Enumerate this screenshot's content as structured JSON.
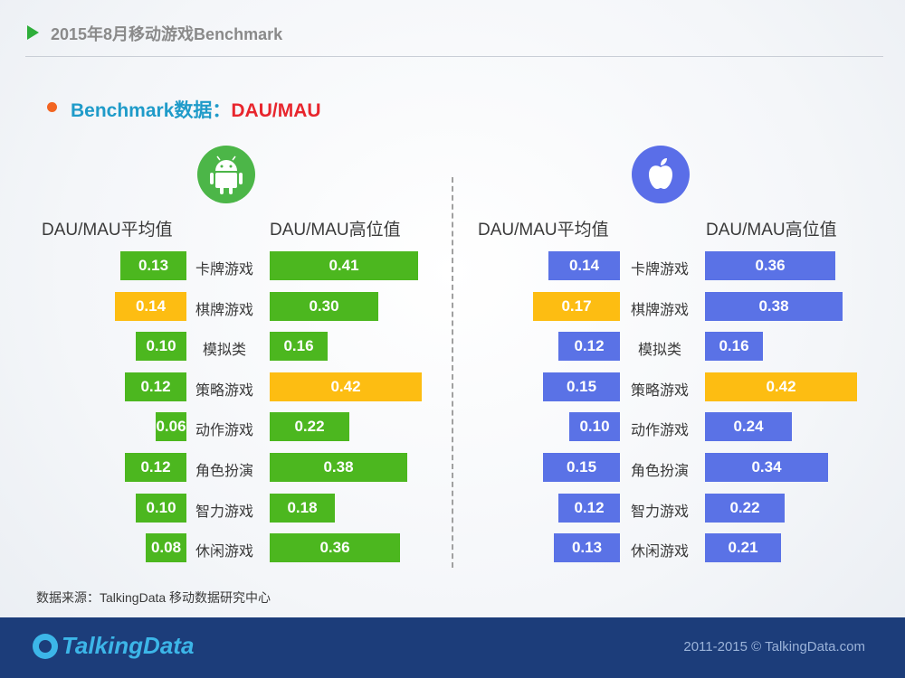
{
  "header": {
    "title": "2015年8月移动游戏Benchmark"
  },
  "section": {
    "title_prefix": "Benchmark数据：",
    "title_accent": "DAU/MAU"
  },
  "column_headers": {
    "android_avg": "DAU/MAU平均值",
    "android_high": "DAU/MAU高位值",
    "ios_avg": "DAU/MAU平均值",
    "ios_high": "DAU/MAU高位值"
  },
  "platforms": [
    "Android",
    "iOS"
  ],
  "colors": {
    "android": "#4cb71f",
    "ios": "#5a72e6",
    "highlight": "#fdbd12"
  },
  "chart_data": {
    "type": "bar",
    "categories": [
      "卡牌游戏",
      "棋牌游戏",
      "模拟类",
      "策略游戏",
      "动作游戏",
      "角色扮演",
      "智力游戏",
      "休闲游戏"
    ],
    "series": [
      {
        "name": "DAU/MAU平均值",
        "platform": "android",
        "values": [
          0.13,
          0.14,
          0.1,
          0.12,
          0.06,
          0.12,
          0.1,
          0.08
        ],
        "labels": [
          "0.13",
          "0.14",
          "0.10",
          "0.12",
          "0.06",
          "0.12",
          "0.10",
          "0.08"
        ],
        "highlight_index": 1
      },
      {
        "name": "DAU/MAU高位值",
        "platform": "android",
        "values": [
          0.41,
          0.3,
          0.16,
          0.42,
          0.22,
          0.38,
          0.18,
          0.36
        ],
        "labels": [
          "0.41",
          "0.30",
          "0.16",
          "0.42",
          "0.22",
          "0.38",
          "0.18",
          "0.36"
        ],
        "highlight_index": 3
      },
      {
        "name": "DAU/MAU平均值",
        "platform": "ios",
        "values": [
          0.14,
          0.17,
          0.12,
          0.15,
          0.1,
          0.15,
          0.12,
          0.13
        ],
        "labels": [
          "0.14",
          "0.17",
          "0.12",
          "0.15",
          "0.10",
          "0.15",
          "0.12",
          "0.13"
        ],
        "highlight_index": 1
      },
      {
        "name": "DAU/MAU高位值",
        "platform": "ios",
        "values": [
          0.36,
          0.38,
          0.16,
          0.42,
          0.24,
          0.34,
          0.22,
          0.21
        ],
        "labels": [
          "0.36",
          "0.38",
          "0.16",
          "0.42",
          "0.24",
          "0.34",
          "0.22",
          "0.21"
        ],
        "highlight_index": 3
      }
    ]
  },
  "source": "数据来源：TalkingData 移动数据研究中心",
  "footer": {
    "logo": "TalkingData",
    "copyright": "2011-2015 © TalkingData.com"
  }
}
